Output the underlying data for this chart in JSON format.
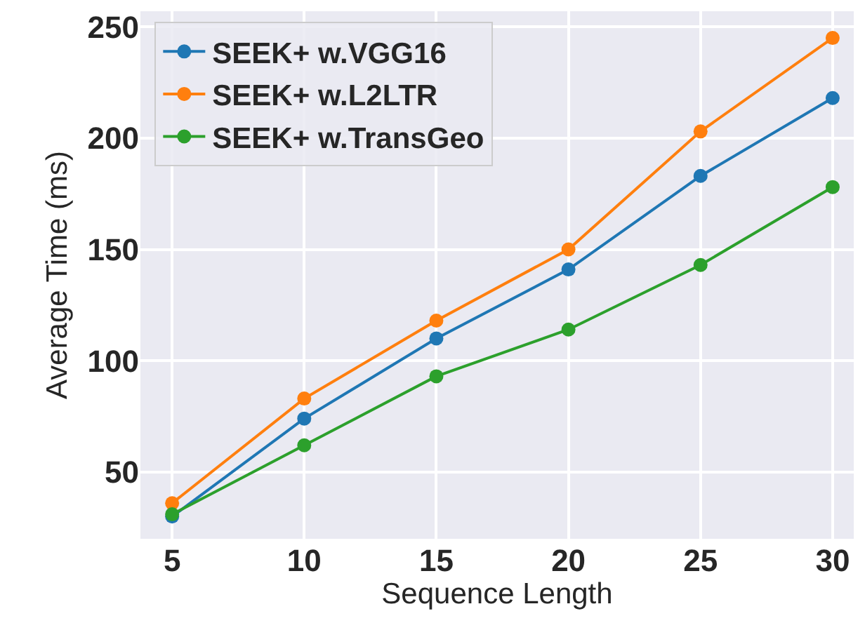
{
  "chart_data": {
    "type": "line",
    "xlabel": "Sequence Length",
    "ylabel": "Average Time (ms)",
    "x": [
      5,
      10,
      15,
      20,
      25,
      30
    ],
    "series": [
      {
        "name": "SEEK+ w.VGG16",
        "color": "#1f77b4",
        "values": [
          30,
          74,
          110,
          141,
          183,
          218
        ]
      },
      {
        "name": "SEEK+ w.L2LTR",
        "color": "#ff7f0e",
        "values": [
          36,
          83,
          118,
          150,
          203,
          245
        ]
      },
      {
        "name": "SEEK+ w.TransGeo",
        "color": "#2ca02c",
        "values": [
          31,
          62,
          93,
          114,
          143,
          178
        ]
      }
    ],
    "xlim": [
      3.8,
      30.8
    ],
    "xticks": [
      5,
      10,
      15,
      20,
      25,
      30
    ],
    "ylim": [
      20,
      257
    ],
    "yticks": [
      50,
      100,
      150,
      200,
      250
    ],
    "grid": true,
    "legend": "top left",
    "marker": "circle",
    "line_style": "solid"
  }
}
